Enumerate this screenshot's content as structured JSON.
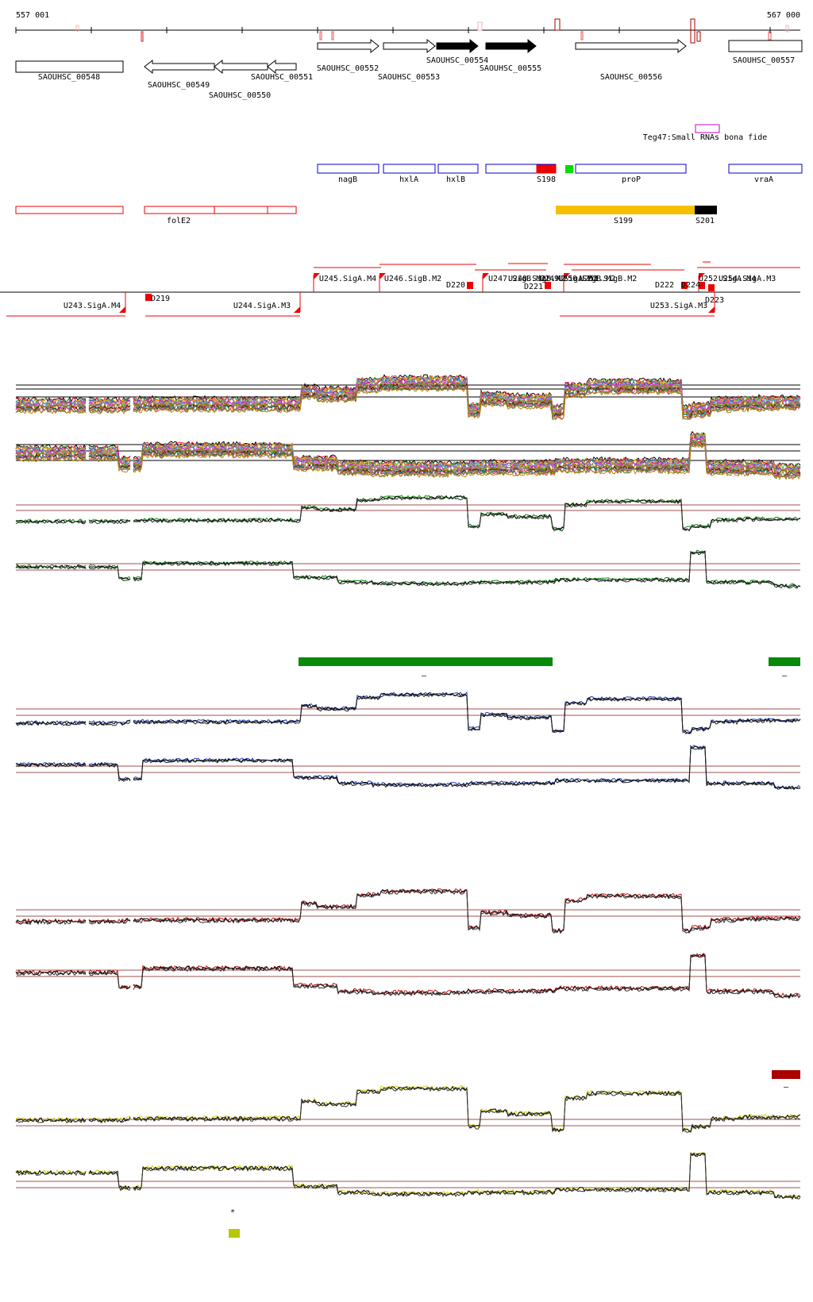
{
  "axis": {
    "start": "557 001",
    "end": "567 000"
  },
  "genes": [
    {
      "id": "SAOUHSC_00548",
      "dir": "none",
      "fill": "white"
    },
    {
      "id": "SAOUHSC_00549",
      "dir": "left",
      "fill": "white"
    },
    {
      "id": "SAOUHSC_00550",
      "dir": "left",
      "fill": "white"
    },
    {
      "id": "SAOUHSC_00551",
      "dir": "left",
      "fill": "white"
    },
    {
      "id": "SAOUHSC_00552",
      "dir": "right",
      "fill": "white"
    },
    {
      "id": "SAOUHSC_00553",
      "dir": "right",
      "fill": "white"
    },
    {
      "id": "SAOUHSC_00554",
      "dir": "right",
      "fill": "black"
    },
    {
      "id": "SAOUHSC_00555",
      "dir": "right",
      "fill": "black"
    },
    {
      "id": "SAOUHSC_00556",
      "dir": "right",
      "fill": "white"
    },
    {
      "id": "SAOUHSC_00557",
      "dir": "none",
      "fill": "white"
    }
  ],
  "small_rna": {
    "label": "Teg47:Small RNAs bona fide",
    "color": "#cc00cc"
  },
  "operons": {
    "labels": [
      "nagB",
      "hxlA",
      "hxlB",
      "S198",
      "proP",
      "vraA"
    ],
    "colors": {
      "outline": "#0000cc",
      "s198": "#ee0000",
      "green_marker": "#00dd00"
    }
  },
  "red_row": {
    "labels": [
      "folE2",
      "S199",
      "S201"
    ],
    "colors": {
      "outline": "#ee0000",
      "s199": "#f5c000",
      "s201": "#000000"
    }
  },
  "tss": {
    "labels": [
      "U245.SigA.M4",
      "U246.SigB.M2",
      "U247.SigB.M2",
      "U248.SigB.M2",
      "U249.SigA.M2",
      "U250.SigB.M2",
      "U251.SigB.M2",
      "U252.SigA.M4",
      "U254.SigA.M3",
      "U243.SigA.M4",
      "U244.SigA.M3",
      "U253.SigA.M3",
      "D219",
      "D220",
      "D221",
      "D222",
      "D223",
      "D224"
    ],
    "color": "#ee0000"
  },
  "tracks": {
    "multi": [
      "#000000",
      "#e6194b",
      "#3cb44b",
      "#ffb300",
      "#4363d8",
      "#f58231",
      "#911eb4",
      "#46c0d0",
      "#f032e6",
      "#8fb800",
      "#a0522d",
      "#808000",
      "#808080",
      "#800000",
      "#008080",
      "#ff69b4",
      "#556b2f",
      "#b8860b"
    ],
    "green": "#0a8a0a",
    "blue": "#1f3fbf",
    "red": "#cc1111",
    "yellow": "#d4d400",
    "ref_line": "#a05050"
  },
  "bars": {
    "green": "#0a8a0a",
    "darkred": "#aa0000",
    "olive": "#b5c800"
  },
  "marks": {
    "dash": "–",
    "star": "*"
  }
}
